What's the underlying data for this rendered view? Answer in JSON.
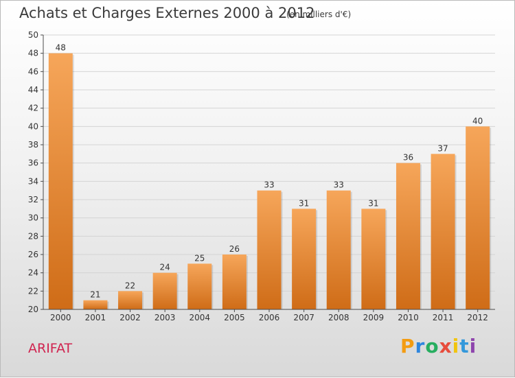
{
  "header": {
    "title": "Achats et Charges Externes 2000 à 2012",
    "unit": "(en milliers d'€)"
  },
  "footer": {
    "commune": "ARIFAT",
    "brand": "Proxiti"
  },
  "colors": {
    "bar_light": "#f6a65a",
    "bar_dark": "#cf6c17",
    "grid": "#d4d4d4",
    "axis": "#4a4a4a",
    "commune_text": "#d0234f"
  },
  "chart_data": {
    "type": "bar",
    "title": "Achats et Charges Externes 2000 à 2012",
    "subtitle": "(en milliers d'€)",
    "xlabel": "",
    "ylabel": "",
    "categories": [
      "2000",
      "2001",
      "2002",
      "2003",
      "2004",
      "2005",
      "2006",
      "2007",
      "2008",
      "2009",
      "2010",
      "2011",
      "2012"
    ],
    "values": [
      48,
      21,
      22,
      24,
      25,
      26,
      33,
      31,
      33,
      31,
      36,
      37,
      40
    ],
    "ylim": [
      20,
      50
    ],
    "yticks": [
      20,
      22,
      24,
      26,
      28,
      30,
      32,
      34,
      36,
      38,
      40,
      42,
      44,
      46,
      48,
      50
    ],
    "grid": true,
    "data_labels": true
  }
}
